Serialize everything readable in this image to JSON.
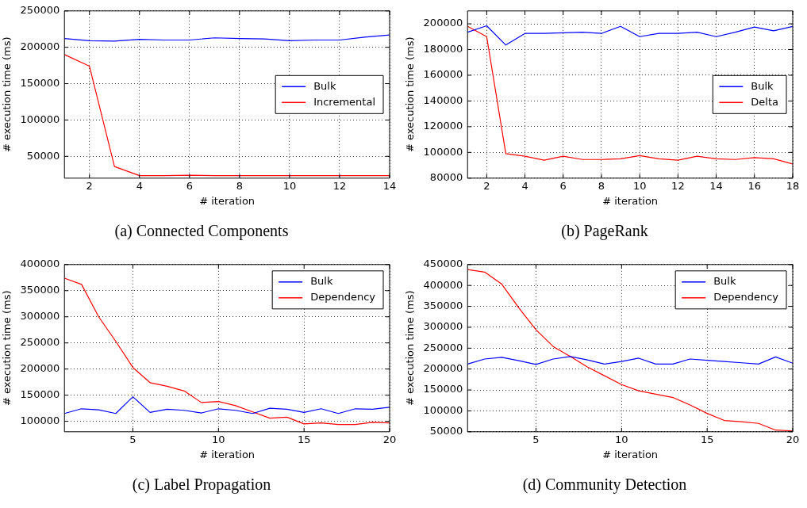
{
  "chart_data": [
    {
      "type": "line",
      "title": "(a) Connected Components",
      "xlabel": "# iteration",
      "ylabel": "# execution time (ms)",
      "x": [
        1,
        2,
        3,
        4,
        5,
        6,
        7,
        8,
        9,
        10,
        11,
        12,
        13,
        14
      ],
      "xlim": [
        1,
        14
      ],
      "xticks": [
        2,
        4,
        6,
        8,
        10,
        12,
        14
      ],
      "ylim": [
        20000,
        250000
      ],
      "yticks": [
        50000,
        100000,
        150000,
        200000,
        250000
      ],
      "grid": true,
      "legend": "right",
      "marker": "none",
      "line_style": "solid",
      "series": [
        {
          "name": "Bulk",
          "color": "#0000ff",
          "values": [
            212000,
            209000,
            208500,
            211000,
            210000,
            210000,
            213000,
            212000,
            211500,
            209000,
            210000,
            210000,
            214000,
            217000
          ]
        },
        {
          "name": "Incremental",
          "color": "#ff0000",
          "values": [
            190000,
            174000,
            36000,
            23500,
            23500,
            24000,
            23500,
            23500,
            23500,
            23500,
            23500,
            23500,
            23500,
            23500
          ]
        }
      ]
    },
    {
      "type": "line",
      "title": "(b) PageRank",
      "xlabel": "# iteration",
      "ylabel": "# execution time (ms)",
      "x": [
        1,
        2,
        3,
        4,
        5,
        6,
        7,
        8,
        9,
        10,
        11,
        12,
        13,
        14,
        15,
        16,
        17,
        18
      ],
      "xlim": [
        1,
        18
      ],
      "xticks": [
        2,
        4,
        6,
        8,
        10,
        12,
        14,
        16,
        18
      ],
      "ylim": [
        80000,
        210000
      ],
      "yticks": [
        80000,
        100000,
        120000,
        140000,
        160000,
        180000,
        200000
      ],
      "grid": true,
      "legend": "right",
      "marker": "none",
      "line_style": "solid",
      "series": [
        {
          "name": "Bulk",
          "color": "#0000ff",
          "values": [
            193500,
            198500,
            183500,
            192500,
            192500,
            193000,
            193500,
            192500,
            198000,
            190000,
            192500,
            192500,
            193500,
            190000,
            193500,
            197500,
            194500,
            198000
          ]
        },
        {
          "name": "Delta",
          "color": "#ff0000",
          "values": [
            198000,
            190000,
            99000,
            97000,
            94000,
            97000,
            94500,
            94500,
            95000,
            97500,
            95000,
            94000,
            97000,
            95000,
            94500,
            96000,
            95000,
            91000
          ]
        }
      ]
    },
    {
      "type": "line",
      "title": "(c) Label Propagation",
      "xlabel": "# iteration",
      "ylabel": "# execution time (ms)",
      "x": [
        1,
        2,
        3,
        4,
        5,
        6,
        7,
        8,
        9,
        10,
        11,
        12,
        13,
        14,
        15,
        16,
        17,
        18,
        19,
        20
      ],
      "xlim": [
        1,
        20
      ],
      "xticks": [
        5,
        10,
        15,
        20
      ],
      "ylim": [
        80000,
        400000
      ],
      "yticks": [
        100000,
        150000,
        200000,
        250000,
        300000,
        350000,
        400000
      ],
      "grid": true,
      "legend": "top right",
      "marker": "none",
      "line_style": "solid",
      "series": [
        {
          "name": "Bulk",
          "color": "#0000ff",
          "values": [
            115000,
            124000,
            122000,
            115000,
            147000,
            117000,
            123000,
            121000,
            116000,
            124000,
            121000,
            115000,
            125000,
            123000,
            117000,
            124000,
            115000,
            124000,
            123000,
            127000
          ]
        },
        {
          "name": "Dependency",
          "color": "#ff0000",
          "values": [
            374000,
            362000,
            300000,
            253000,
            203000,
            174000,
            167000,
            158000,
            136000,
            138000,
            130000,
            118000,
            106000,
            108000,
            95000,
            97000,
            94000,
            94000,
            98000,
            97000
          ]
        }
      ]
    },
    {
      "type": "line",
      "title": "(d) Community Detection",
      "xlabel": "# iteration",
      "ylabel": "# execution time (ms)",
      "x": [
        1,
        2,
        3,
        4,
        5,
        6,
        7,
        8,
        9,
        10,
        11,
        12,
        13,
        14,
        15,
        16,
        17,
        18,
        19,
        20
      ],
      "xlim": [
        1,
        20
      ],
      "xticks": [
        5,
        10,
        15,
        20
      ],
      "ylim": [
        50000,
        450000
      ],
      "yticks": [
        50000,
        100000,
        150000,
        200000,
        250000,
        300000,
        350000,
        400000,
        450000
      ],
      "grid": true,
      "legend": "top right",
      "marker": "none",
      "line_style": "solid",
      "series": [
        {
          "name": "Bulk",
          "color": "#0000ff",
          "values": [
            212000,
            224000,
            228000,
            220000,
            211000,
            224000,
            230000,
            222000,
            212000,
            218000,
            226000,
            212000,
            212000,
            224000,
            221000,
            218000,
            215000,
            212000,
            229000,
            214000
          ]
        },
        {
          "name": "Dependency",
          "color": "#ff0000",
          "values": [
            438000,
            432000,
            403000,
            346000,
            294000,
            254000,
            230000,
            205000,
            184000,
            163000,
            148000,
            140000,
            132000,
            114000,
            94000,
            77000,
            74000,
            70000,
            54000,
            52000
          ]
        }
      ]
    }
  ]
}
